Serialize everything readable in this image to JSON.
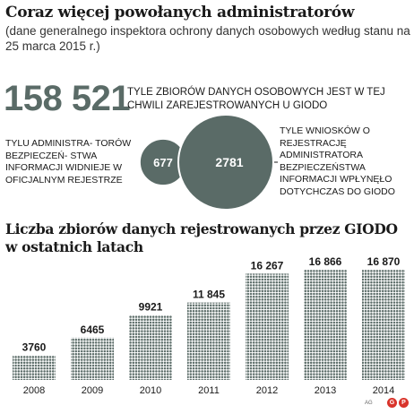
{
  "header": {
    "title": "Coraz więcej powołanych administratorów",
    "subtitle": "(dane generalnego inspektora ochrony danych osobowych według stanu na 25 marca 2015 r.)"
  },
  "highlight": {
    "number": "158 521",
    "caption": "TYLE ZBIORÓW DANYCH OSOBOWYCH JEST W TEJ CHWILI ZAREJESTROWANYCH U GIODO"
  },
  "comparison": {
    "left_caption": "TYLU ADMINISTRA- TORÓW BEZPIECZEŃ- STWA INFORMACJI WIDNIEJE W OFICJALNYM REJESTRZE",
    "right_caption": "TYLE WNIOSKÓW O REJESTRACJĘ ADMINISTRATORA BEZPIECZEŃSTWA INFORMACJI WPŁYNĘŁO DOTYCHCZAS DO GIODO",
    "bubble_color": "#5a6b67",
    "bubbles": [
      {
        "value": 677,
        "label": "677"
      },
      {
        "value": 2781,
        "label": "2781"
      }
    ]
  },
  "chart_title": "Liczba zbiorów danych rejestrowanych przez GIODO w ostatnich latach",
  "chart_data": {
    "type": "bar",
    "title": "Liczba zbiorów danych rejestrowanych przez GIODO w ostatnich latach",
    "categories": [
      "2008",
      "2009",
      "2010",
      "2011",
      "2012",
      "2013",
      "2014"
    ],
    "values": [
      3760,
      6465,
      9921,
      11845,
      16267,
      16866,
      16870
    ],
    "value_labels": [
      "3760",
      "6465",
      "9921",
      "11 845",
      "16 267",
      "16 866",
      "16 870"
    ],
    "ylim": [
      0,
      17000
    ],
    "grid": false,
    "bar_color": "#5a6b67",
    "pattern": "dotted"
  },
  "footer": {
    "credit": "AG",
    "logo_letters": [
      "G",
      "P"
    ]
  }
}
